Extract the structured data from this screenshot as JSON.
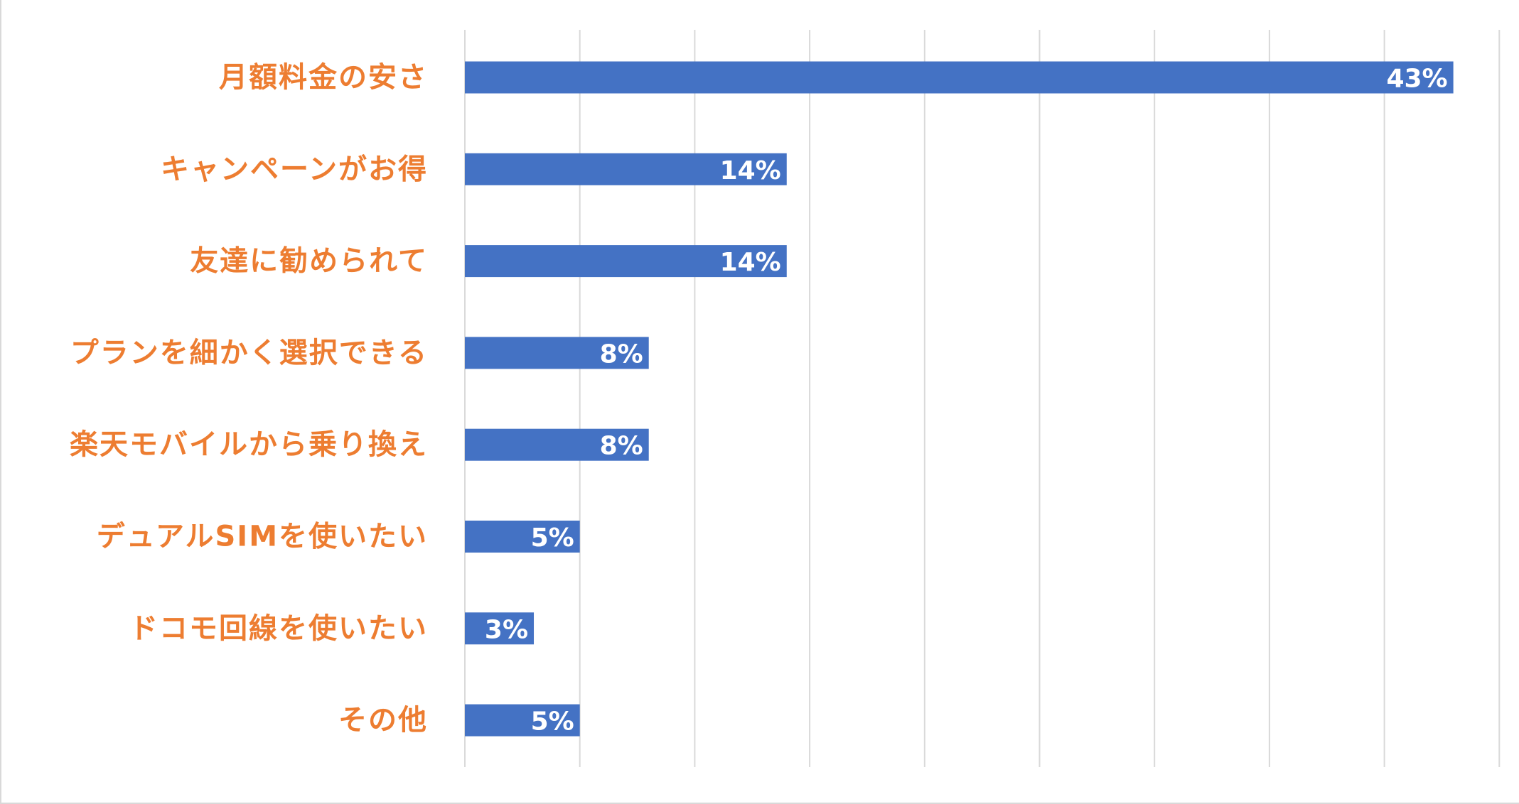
{
  "chart_data": {
    "type": "bar",
    "orientation": "horizontal",
    "categories": [
      "月額料金の安さ",
      "キャンペーンがお得",
      "友達に勧められて",
      "プランを細かく選択できる",
      "楽天モバイルから乗り換え",
      "デュアルSIMを使いたい",
      "ドコモ回線を使いたい",
      "その他"
    ],
    "values": [
      43,
      14,
      14,
      8,
      8,
      5,
      3,
      5
    ],
    "data_labels": [
      "43%",
      "14%",
      "14%",
      "8%",
      "8%",
      "5%",
      "3%",
      "5%"
    ],
    "xlim": [
      0,
      45
    ],
    "grid": true,
    "legend": "none"
  },
  "colors": {
    "bar": "#4472c4",
    "category_label": "#ed7d31",
    "value_label": "#ffffff",
    "gridline": "#d9d9d9",
    "frame": "#d9d9d9"
  }
}
